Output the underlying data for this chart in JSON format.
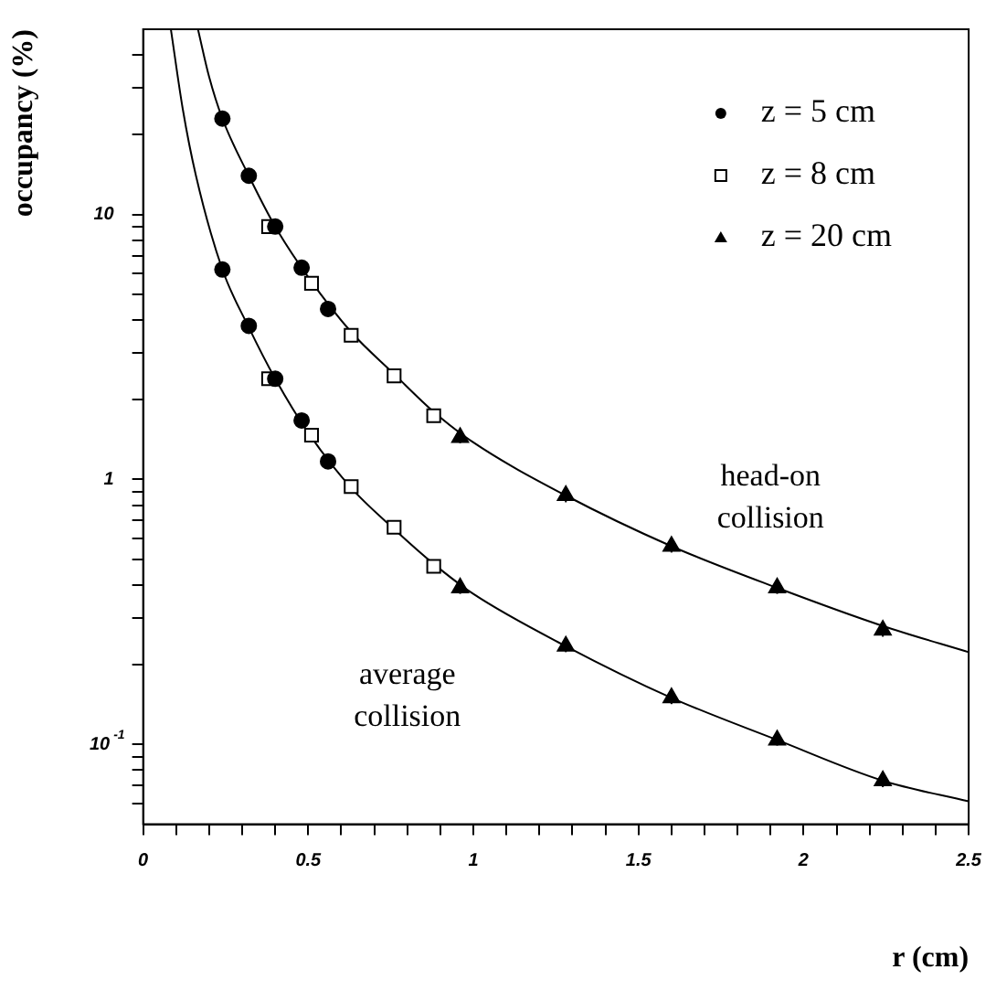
{
  "chart_data": {
    "type": "scatter",
    "xlabel": "r (cm)",
    "ylabel": "occupancy (%)",
    "xlim": [
      0,
      2.5
    ],
    "xticks": [
      0,
      {
        "value": 0.1,
        "label": null
      },
      {
        "value": 0.2,
        "label": null
      },
      {
        "value": 0.3,
        "label": null
      },
      {
        "value": 0.4,
        "label": null
      },
      0.5,
      {
        "value": 0.6,
        "label": null
      },
      {
        "value": 0.7,
        "label": null
      },
      {
        "value": 0.8,
        "label": null
      },
      {
        "value": 0.9,
        "label": null
      },
      1,
      {
        "value": 1.1,
        "label": null
      },
      {
        "value": 1.2,
        "label": null
      },
      {
        "value": 1.3,
        "label": null
      },
      {
        "value": 1.4,
        "label": null
      },
      1.5,
      {
        "value": 1.6,
        "label": null
      },
      {
        "value": 1.7,
        "label": null
      },
      {
        "value": 1.8,
        "label": null
      },
      {
        "value": 1.9,
        "label": null
      },
      2,
      {
        "value": 2.1,
        "label": null
      },
      {
        "value": 2.2,
        "label": null
      },
      {
        "value": 2.3,
        "label": null
      },
      {
        "value": 2.4,
        "label": null
      },
      2.5
    ],
    "ylim": [
      0.05,
      50
    ],
    "log": "y",
    "yticks": [
      {
        "value": 0.06,
        "label": null
      },
      {
        "value": 0.07,
        "label": null
      },
      {
        "value": 0.08,
        "label": null
      },
      {
        "value": 0.09,
        "label": null
      },
      {
        "value": 0.1,
        "label": "10$^{-1}$"
      },
      {
        "value": 0.2,
        "label": null
      },
      {
        "value": 0.3,
        "label": null
      },
      {
        "value": 0.4,
        "label": null
      },
      {
        "value": 0.5,
        "label": null
      },
      {
        "value": 0.6,
        "label": null
      },
      {
        "value": 0.7,
        "label": null
      },
      {
        "value": 0.8,
        "label": null
      },
      {
        "value": 0.9,
        "label": null
      },
      1,
      {
        "value": 2,
        "label": null
      },
      {
        "value": 3,
        "label": null
      },
      {
        "value": 4,
        "label": null
      },
      {
        "value": 5,
        "label": null
      },
      {
        "value": 6,
        "label": null
      },
      {
        "value": 7,
        "label": null
      },
      {
        "value": 8,
        "label": null
      },
      {
        "value": 9,
        "label": null
      },
      10,
      {
        "value": 20,
        "label": null
      },
      {
        "value": 30,
        "label": null
      },
      {
        "value": 40,
        "label": null
      }
    ],
    "grid": false,
    "legend": "top right",
    "series": [
      {
        "name": "z = 5 cm",
        "type": "scatter",
        "marker": "circle",
        "color": "#000000",
        "x": [
          0.24,
          0.32,
          0.4,
          0.48,
          0.56,
          0.24,
          0.32,
          0.4,
          0.48,
          0.56
        ],
        "values": [
          23,
          14,
          9.0,
          6.3,
          4.4,
          6.2,
          3.8,
          2.4,
          1.67,
          1.17
        ],
        "errors": [
          1.2,
          0.7,
          0.45,
          0.3,
          0.2,
          0.3,
          0.2,
          0.12,
          0.08,
          0.06
        ]
      },
      {
        "name": "z = 8 cm",
        "type": "scatter",
        "marker": "square",
        "color": "#000000",
        "x": [
          0.38,
          0.51,
          0.63,
          0.76,
          0.88,
          0.38,
          0.51,
          0.63,
          0.76,
          0.88
        ],
        "values": [
          9.0,
          5.5,
          3.5,
          2.46,
          1.74,
          2.4,
          1.47,
          0.94,
          0.66,
          0.47
        ],
        "errors": [
          0.45,
          0.27,
          0.17,
          0.12,
          0.09,
          0.12,
          0.07,
          0.05,
          0.03,
          0.02
        ]
      },
      {
        "name": "z = 20 cm",
        "type": "scatter",
        "marker": "triangle",
        "color": "#000000",
        "x": [
          0.96,
          1.28,
          1.6,
          1.92,
          2.24,
          0.96,
          1.28,
          1.6,
          1.92,
          2.24
        ],
        "values": [
          1.44,
          0.87,
          0.56,
          0.39,
          0.27,
          0.39,
          0.235,
          0.15,
          0.104,
          0.073
        ],
        "errors": [
          0.07,
          0.05,
          0.03,
          0.02,
          0.015,
          0.02,
          0.012,
          0.008,
          0.005,
          0.004
        ]
      },
      {
        "type": "line",
        "marker": "none",
        "line_style": "solid",
        "color": "#000000",
        "x": [
          0.166,
          0.2,
          0.24,
          0.32,
          0.4,
          0.5,
          0.63,
          0.76,
          0.88,
          1.0,
          1.28,
          1.6,
          1.92,
          2.24,
          2.5
        ],
        "values": [
          50,
          33,
          23,
          14,
          9,
          5.8,
          3.6,
          2.5,
          1.8,
          1.38,
          0.87,
          0.56,
          0.39,
          0.28,
          0.223
        ]
      },
      {
        "type": "line",
        "marker": "none",
        "line_style": "solid",
        "color": "#000000",
        "x": [
          0.084,
          0.12,
          0.16,
          0.24,
          0.32,
          0.4,
          0.5,
          0.63,
          0.76,
          0.88,
          1.0,
          1.28,
          1.6,
          1.92,
          2.24,
          2.5
        ],
        "values": [
          50,
          25,
          14,
          6.2,
          3.75,
          2.4,
          1.5,
          0.93,
          0.65,
          0.48,
          0.37,
          0.235,
          0.15,
          0.104,
          0.073,
          0.061
        ]
      }
    ],
    "annotations": [
      "head-on\ncollision",
      "average\ncollision"
    ]
  }
}
